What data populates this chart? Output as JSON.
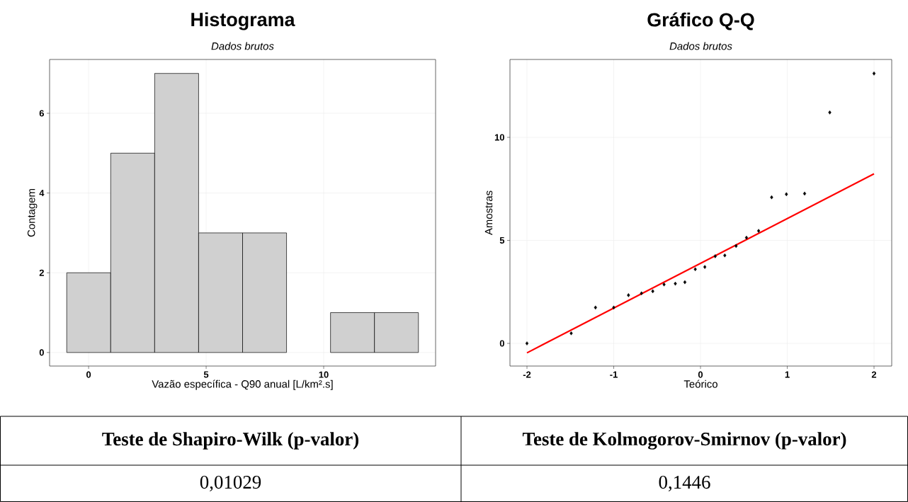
{
  "chart_data": [
    {
      "type": "histogram",
      "title": "Histograma",
      "subtitle": "Dados brutos",
      "xlabel": "Vazão específica - Q90 anual [L/km².s]",
      "ylabel": "Contagem",
      "bins": [
        -0.93,
        0.94,
        2.81,
        4.68,
        6.55,
        8.42,
        10.29,
        12.16,
        14.03
      ],
      "values": [
        2,
        5,
        7,
        3,
        3,
        0,
        1,
        1
      ],
      "color": "#d0d0d0",
      "xlim": [
        -1.66,
        14.76
      ],
      "ylim": [
        -0.34,
        7.35
      ],
      "xticks": [
        0,
        5,
        10
      ],
      "yticks": [
        0,
        2,
        4,
        6
      ],
      "grid": true
    },
    {
      "type": "scatter",
      "title": "Gráfico Q-Q",
      "subtitle": "Dados brutos",
      "xlabel": "Teórico",
      "ylabel": "Amostras",
      "series": [
        {
          "type": "scatter",
          "color": "#000000",
          "marker": "diamond",
          "x": [
            -2.0,
            -1.49,
            -1.21,
            -1.0,
            -0.83,
            -0.68,
            -0.55,
            -0.42,
            -0.29,
            -0.18,
            -0.06,
            0.05,
            0.17,
            0.28,
            0.41,
            0.53,
            0.67,
            0.82,
            0.99,
            1.2,
            1.49,
            2.0
          ],
          "values": [
            0.0,
            0.49,
            1.74,
            1.74,
            2.34,
            2.43,
            2.53,
            2.86,
            2.9,
            2.97,
            3.6,
            3.71,
            4.23,
            4.27,
            4.73,
            5.13,
            5.46,
            7.09,
            7.24,
            7.27,
            11.21,
            13.1
          ]
        },
        {
          "type": "line",
          "color": "#ff0000",
          "x": [
            -2.0,
            2.0
          ],
          "values": [
            -0.46,
            8.23
          ]
        }
      ],
      "xlim": [
        -2.196,
        2.204
      ],
      "ylim": [
        -1.1,
        13.78
      ],
      "xticks": [
        -2,
        -1,
        0,
        1,
        2
      ],
      "yticks": [
        0,
        5,
        10
      ],
      "grid": true
    },
    {
      "type": "other",
      "annotations": [
        "Teste de Shapiro-Wilk (p-valor)",
        "Teste de Kolmogorov-Smirnov (p-valor)",
        "0,01029",
        "0,1446"
      ]
    }
  ]
}
